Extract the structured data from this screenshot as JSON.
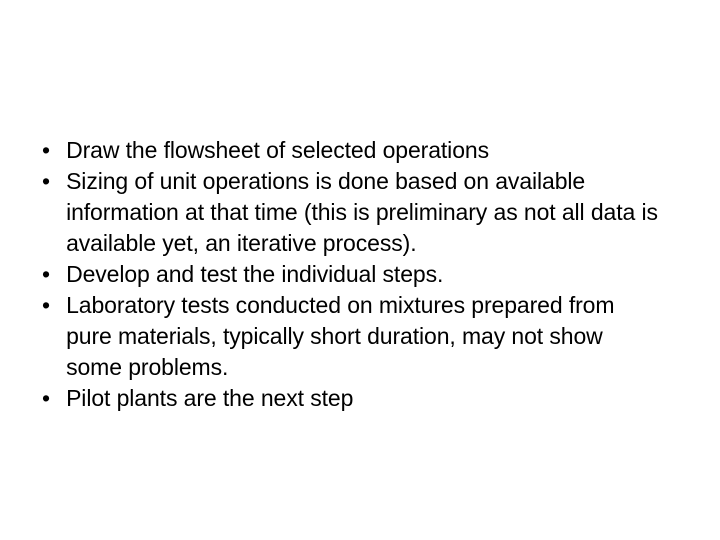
{
  "slide": {
    "bullets": [
      "Draw the flowsheet of selected operations",
      "Sizing of unit operations is done based on available information at that time (this is preliminary as not all data is available yet, an iterative process).",
      "Develop and test the individual steps.",
      "Laboratory tests conducted on mixtures prepared from pure materials, typically short duration, may not show some problems.",
      "Pilot plants are the next step"
    ],
    "styling": {
      "background_color": "#ffffff",
      "text_color": "#000000",
      "font_size": 23,
      "font_family": "Arial",
      "bullet_char": "•",
      "line_height": 1.35
    }
  }
}
